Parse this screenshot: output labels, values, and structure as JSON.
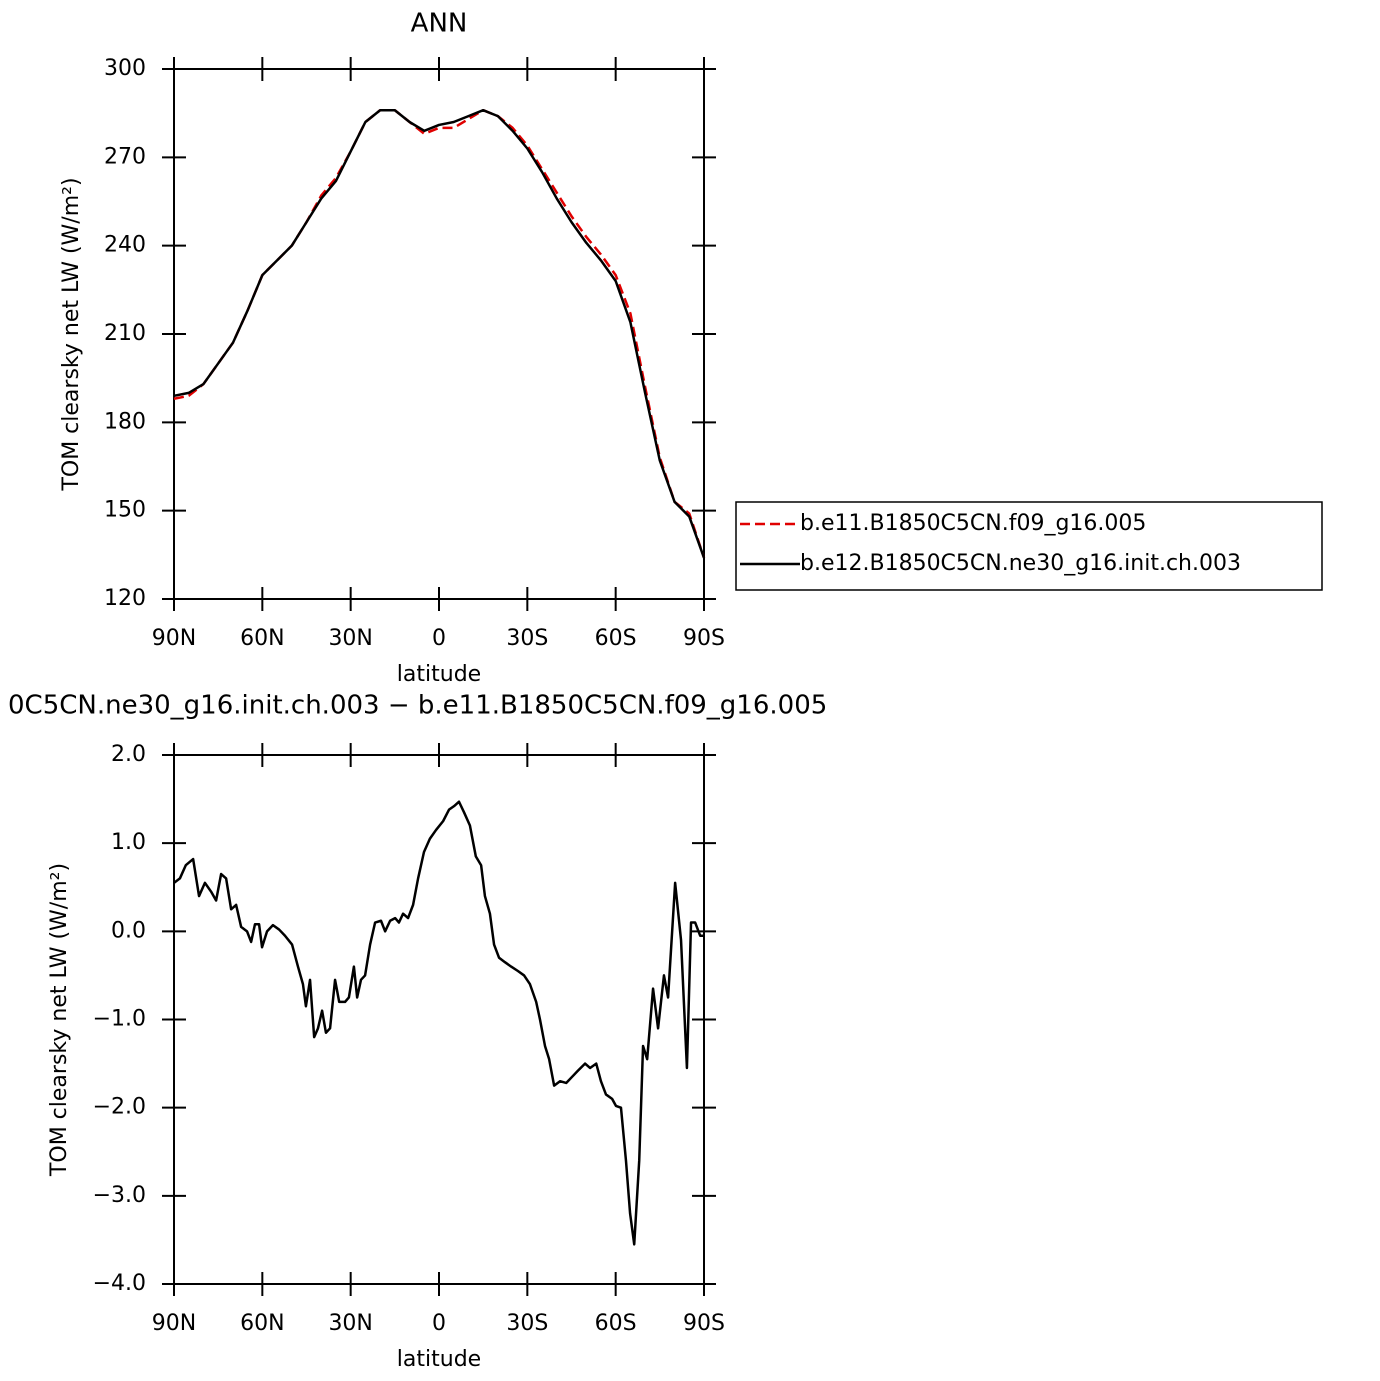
{
  "chart_data": [
    {
      "type": "line",
      "title": "ANN",
      "xlabel": "latitude",
      "ylabel": "TOM clearsky net LW (W/m²)",
      "x": [
        90,
        85,
        80,
        75,
        70,
        65,
        60,
        55,
        50,
        45,
        40,
        35,
        30,
        25,
        20,
        15,
        10,
        5,
        0,
        -5,
        -10,
        -15,
        -20,
        -25,
        -30,
        -35,
        -40,
        -45,
        -50,
        -55,
        -60,
        -65,
        -70,
        -75,
        -80,
        -85,
        -90
      ],
      "series": [
        {
          "name": "b.e11.B1850C5CN.f09_g16.005",
          "color": "#e00000",
          "dashed": true,
          "values": [
            188,
            189,
            193,
            200,
            207,
            218,
            230,
            235,
            240,
            248,
            257,
            263,
            272,
            282,
            286,
            286,
            282,
            278,
            280,
            280,
            283,
            286,
            284,
            280,
            274,
            266,
            258,
            250,
            243,
            237,
            230,
            217,
            192,
            168,
            153,
            149,
            134
          ]
        },
        {
          "name": "b.e12.B1850C5CN.ne30_g16.init.ch.003",
          "color": "#000000",
          "dashed": false,
          "values": [
            189,
            190,
            193,
            200,
            207,
            218,
            230,
            235,
            240,
            248,
            256,
            262,
            272,
            282,
            286,
            286,
            282,
            279,
            281,
            282,
            284,
            286,
            284,
            279,
            273,
            265,
            256,
            248,
            241,
            235,
            228,
            214,
            190,
            167,
            153,
            148,
            134
          ]
        }
      ],
      "xlim": [
        90,
        -90
      ],
      "xticks": [
        {
          "value": 90,
          "label": "90N"
        },
        {
          "value": 60,
          "label": "60N"
        },
        {
          "value": 30,
          "label": "30N"
        },
        0,
        {
          "value": -30,
          "label": "30S"
        },
        {
          "value": -60,
          "label": "60S"
        },
        {
          "value": -90,
          "label": "90S"
        }
      ],
      "ylim": [
        120,
        300
      ],
      "yticks": [
        120,
        150,
        180,
        210,
        240,
        270,
        300
      ],
      "legend_position": "right"
    },
    {
      "type": "line",
      "title": "0C5CN.ne30_g16.init.ch.003 − b.e11.B1850C5CN.f09_g16.005",
      "xlabel": "latitude",
      "ylabel": "TOM clearsky net LW (W/m²)",
      "x": [
        90,
        88,
        86,
        83.5,
        81.5,
        79.5,
        77.4,
        75.7,
        74,
        72.3,
        70.6,
        68.9,
        67.2,
        65.2,
        63.8,
        62.5,
        61.1,
        60.1,
        58.4,
        56.4,
        54.3,
        52.3,
        49.9,
        47.9,
        46.2,
        45.2,
        43.8,
        42.4,
        41.1,
        39.7,
        38.4,
        37,
        35.3,
        33.9,
        31.9,
        30.6,
        28.9,
        27.8,
        26.5,
        25.1,
        23.4,
        21.7,
        19.7,
        18.3,
        16.6,
        14.9,
        13.6,
        12.2,
        10.5,
        8.8,
        7.1,
        5.1,
        3.1,
        1,
        -1.4,
        -3.4,
        -5.1,
        -6.8,
        -8.5,
        -10.5,
        -12.5,
        -14.3,
        -15.6,
        -17.3,
        -18.7,
        -20.4,
        -22.4,
        -24.5,
        -26.8,
        -28.9,
        -30.9,
        -33,
        -34.3,
        -36,
        -37.4,
        -39.1,
        -41.1,
        -43.2,
        -45.2,
        -47.2,
        -49.6,
        -51.3,
        -53.4,
        -55,
        -56.7,
        -58.8,
        -60.1,
        -61.8,
        -63.5,
        -64.9,
        -66.3,
        -68,
        -69.3,
        -70.7,
        -72.7,
        -74.4,
        -76.4,
        -77.8,
        -80.2,
        -82.2,
        -84.2,
        -85.6,
        -87,
        -88.7,
        -90
      ],
      "series": [
        {
          "color": "#000000",
          "dashed": false,
          "values": [
            0.55,
            0.6,
            0.75,
            0.82,
            0.4,
            0.55,
            0.45,
            0.35,
            0.65,
            0.6,
            0.25,
            0.3,
            0.05,
            0,
            -0.12,
            0.08,
            0.08,
            -0.18,
            0,
            0.07,
            0.02,
            -0.05,
            -0.15,
            -0.4,
            -0.6,
            -0.85,
            -0.55,
            -1.2,
            -1.1,
            -0.9,
            -1.15,
            -1.1,
            -0.55,
            -0.8,
            -0.8,
            -0.75,
            -0.4,
            -0.75,
            -0.55,
            -0.5,
            -0.15,
            0.1,
            0.12,
            0,
            0.12,
            0.15,
            0.1,
            0.2,
            0.15,
            0.3,
            0.6,
            0.9,
            1.05,
            1.15,
            1.25,
            1.38,
            1.42,
            1.47,
            1.35,
            1.2,
            0.85,
            0.75,
            0.4,
            0.2,
            -0.15,
            -0.3,
            -0.35,
            -0.4,
            -0.45,
            -0.5,
            -0.6,
            -0.8,
            -1,
            -1.3,
            -1.45,
            -1.75,
            -1.7,
            -1.72,
            -1.65,
            -1.58,
            -1.5,
            -1.55,
            -1.5,
            -1.7,
            -1.85,
            -1.9,
            -1.98,
            -2,
            -2.6,
            -3.2,
            -3.55,
            -2.6,
            -1.3,
            -1.45,
            -0.65,
            -1.1,
            -0.5,
            -0.75,
            0.55,
            -0.1,
            -1.55,
            0.1,
            0.1,
            -0.05,
            -0.05
          ]
        }
      ],
      "xlim": [
        90,
        -90
      ],
      "xticks": [
        {
          "value": 90,
          "label": "90N"
        },
        {
          "value": 60,
          "label": "60N"
        },
        {
          "value": 30,
          "label": "30N"
        },
        0,
        {
          "value": -30,
          "label": "30S"
        },
        {
          "value": -60,
          "label": "60S"
        },
        {
          "value": -90,
          "label": "90S"
        }
      ],
      "ylim": [
        -4,
        2
      ],
      "yticks": [
        {
          "value": -4,
          "label": "−4.0"
        },
        {
          "value": -3,
          "label": "−3.0"
        },
        {
          "value": -2,
          "label": "−2.0"
        },
        {
          "value": -1,
          "label": "−1.0"
        },
        {
          "value": 0,
          "label": "0.0"
        },
        {
          "value": 1,
          "label": "1.0"
        },
        {
          "value": 2,
          "label": "2.0"
        }
      ]
    }
  ]
}
